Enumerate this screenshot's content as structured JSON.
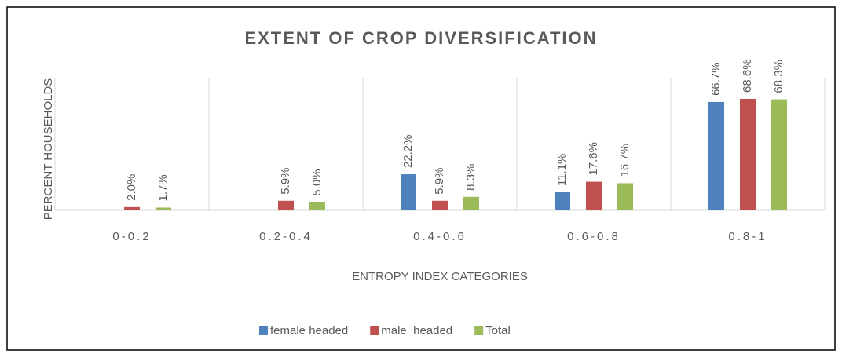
{
  "chart_data": {
    "type": "bar",
    "title": "EXTENT OF CROP DIVERSIFICATION",
    "y_label": "PERCENT HOUSEHOLDS",
    "x_label": "ENTROPY INDEX CATEGORIES",
    "categories": [
      "0-0.2",
      "0.2-0.4",
      "0.4-0.6",
      "0.6-0.8",
      "0.8-1"
    ],
    "series": [
      {
        "name": "female headed",
        "color": "#4f81bd",
        "values": [
          null,
          null,
          22.2,
          11.1,
          66.7
        ],
        "value_labels": [
          null,
          null,
          "22.2%",
          "11.1%",
          "66.7%"
        ]
      },
      {
        "name": "male  headed",
        "color": "#c0504d",
        "values": [
          2.0,
          5.9,
          5.9,
          17.6,
          68.6
        ],
        "value_labels": [
          "2.0%",
          "5.9%",
          "5.9%",
          "17.6%",
          "68.6%"
        ]
      },
      {
        "name": "Total",
        "color": "#9bbb59",
        "values": [
          1.7,
          5.0,
          8.3,
          16.7,
          68.3
        ],
        "value_labels": [
          "1.7%",
          "5.0%",
          "8.3%",
          "16.7%",
          "68.3%"
        ]
      }
    ],
    "legend": "bottom"
  }
}
